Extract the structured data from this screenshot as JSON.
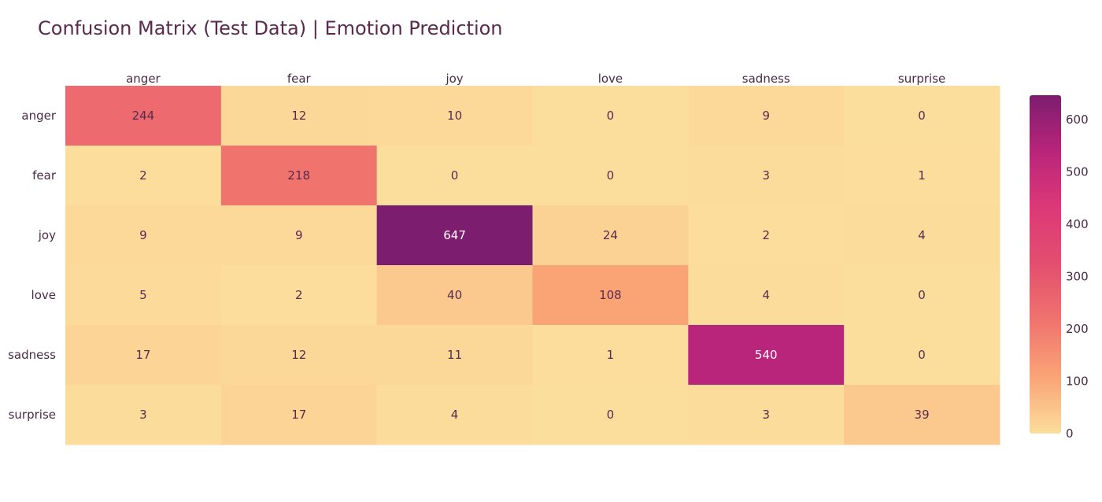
{
  "chart_data": {
    "type": "heatmap",
    "title": "Confusion Matrix (Test Data) | Emotion Prediction",
    "x_categories": [
      "anger",
      "fear",
      "joy",
      "love",
      "sadness",
      "surprise"
    ],
    "y_categories": [
      "anger",
      "fear",
      "joy",
      "love",
      "sadness",
      "surprise"
    ],
    "values": [
      [
        244,
        12,
        10,
        0,
        9,
        0
      ],
      [
        2,
        218,
        0,
        0,
        3,
        1
      ],
      [
        9,
        9,
        647,
        24,
        2,
        4
      ],
      [
        5,
        2,
        40,
        108,
        4,
        0
      ],
      [
        17,
        12,
        11,
        1,
        540,
        0
      ],
      [
        3,
        17,
        4,
        0,
        3,
        39
      ]
    ],
    "x_axis_position": "top",
    "colorscale": [
      "#fcde9c",
      "#faa476",
      "#f0746e",
      "#e34f6f",
      "#dc3977",
      "#b9257a",
      "#7c1d6f"
    ],
    "colorbar": {
      "range": [
        0,
        647
      ],
      "ticks": [
        0,
        100,
        200,
        300,
        400,
        500,
        600
      ],
      "tick_labels": [
        "0",
        "100",
        "200",
        "300",
        "400",
        "500",
        "600"
      ]
    },
    "label_color_dark": "#5a2a4e",
    "label_color_light": "#ffffff"
  }
}
